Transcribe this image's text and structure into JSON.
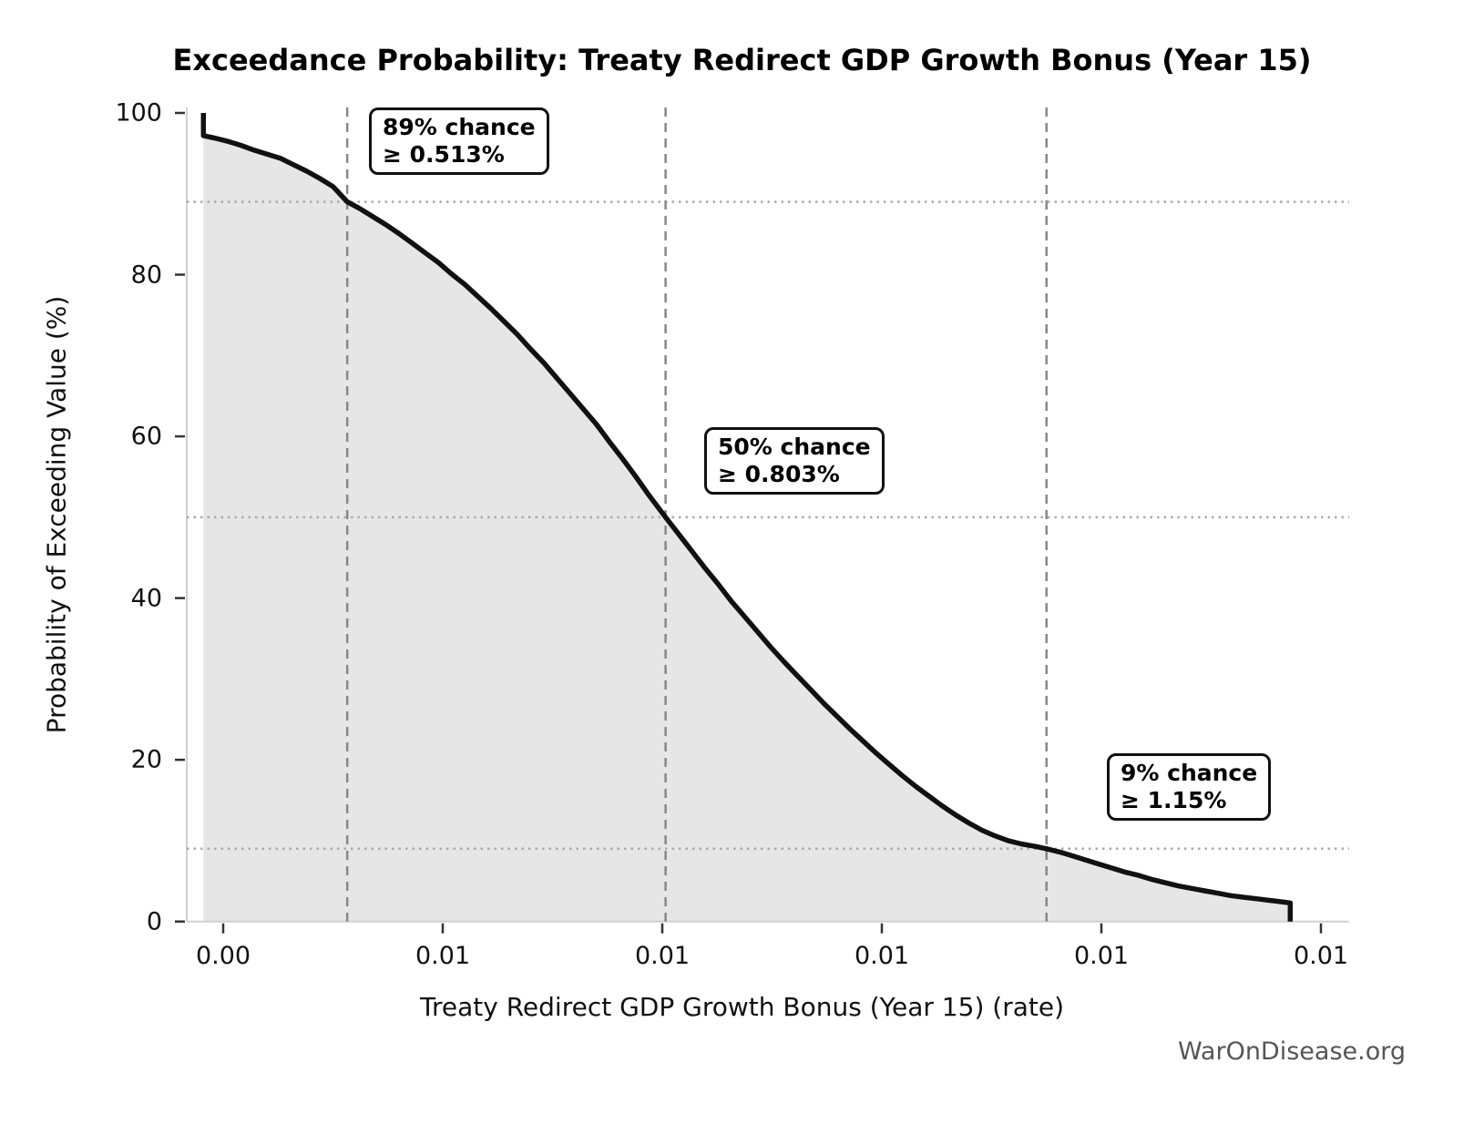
{
  "title": "Exceedance Probability: Treaty Redirect GDP Growth Bonus (Year 15)",
  "watermark": "WarOnDisease.org",
  "chart_data": {
    "type": "line",
    "subtype": "exceedance-probability-curve",
    "title": "Exceedance Probability: Treaty Redirect GDP Growth Bonus (Year 15)",
    "xlabel": "Treaty Redirect GDP Growth Bonus (Year 15) (rate)",
    "ylabel": "Probability of Exceeding Value (%)",
    "xlim_pct": [
      0.367,
      1.427
    ],
    "ylim": [
      0,
      100
    ],
    "grid": "guide lines only (dotted horizontal and dashed vertical at annotated percentiles)",
    "legend": "none",
    "x_ticks": {
      "values_pct": [
        0.4,
        0.6,
        0.8,
        1.0,
        1.2,
        1.4
      ],
      "labels": [
        "0.00",
        "0.01",
        "0.01",
        "0.01",
        "0.01",
        "0.01"
      ]
    },
    "y_ticks": {
      "values": [
        100,
        80,
        60,
        40,
        20,
        0
      ],
      "labels": [
        "100",
        "80",
        "60",
        "40",
        "20",
        "0"
      ]
    },
    "curve_units": {
      "x": "rate in percent",
      "y": "probability of exceeding value in percent"
    },
    "curve": [
      [
        0.382,
        100.0
      ],
      [
        0.382,
        97.2
      ],
      [
        0.392,
        96.9
      ],
      [
        0.404,
        96.5
      ],
      [
        0.416,
        96.0
      ],
      [
        0.428,
        95.4
      ],
      [
        0.44,
        94.9
      ],
      [
        0.452,
        94.4
      ],
      [
        0.464,
        93.6
      ],
      [
        0.476,
        92.8
      ],
      [
        0.488,
        91.9
      ],
      [
        0.5,
        90.9
      ],
      [
        0.513,
        89.0
      ],
      [
        0.524,
        88.2
      ],
      [
        0.536,
        87.2
      ],
      [
        0.548,
        86.2
      ],
      [
        0.56,
        85.1
      ],
      [
        0.572,
        83.9
      ],
      [
        0.584,
        82.7
      ],
      [
        0.596,
        81.5
      ],
      [
        0.608,
        80.1
      ],
      [
        0.62,
        78.8
      ],
      [
        0.632,
        77.3
      ],
      [
        0.644,
        75.8
      ],
      [
        0.656,
        74.2
      ],
      [
        0.668,
        72.6
      ],
      [
        0.68,
        70.8
      ],
      [
        0.692,
        69.1
      ],
      [
        0.704,
        67.2
      ],
      [
        0.716,
        65.3
      ],
      [
        0.728,
        63.4
      ],
      [
        0.74,
        61.5
      ],
      [
        0.752,
        59.3
      ],
      [
        0.764,
        57.2
      ],
      [
        0.776,
        55.0
      ],
      [
        0.788,
        52.7
      ],
      [
        0.803,
        50.0
      ],
      [
        0.815,
        47.9
      ],
      [
        0.827,
        45.8
      ],
      [
        0.839,
        43.7
      ],
      [
        0.851,
        41.7
      ],
      [
        0.863,
        39.6
      ],
      [
        0.875,
        37.7
      ],
      [
        0.887,
        35.8
      ],
      [
        0.899,
        33.9
      ],
      [
        0.911,
        32.1
      ],
      [
        0.923,
        30.4
      ],
      [
        0.935,
        28.7
      ],
      [
        0.947,
        27.0
      ],
      [
        0.959,
        25.4
      ],
      [
        0.971,
        23.8
      ],
      [
        0.983,
        22.3
      ],
      [
        0.995,
        20.8
      ],
      [
        1.007,
        19.4
      ],
      [
        1.019,
        18.0
      ],
      [
        1.031,
        16.7
      ],
      [
        1.043,
        15.5
      ],
      [
        1.055,
        14.3
      ],
      [
        1.067,
        13.2
      ],
      [
        1.079,
        12.2
      ],
      [
        1.091,
        11.3
      ],
      [
        1.103,
        10.6
      ],
      [
        1.115,
        10.0
      ],
      [
        1.127,
        9.6
      ],
      [
        1.139,
        9.3
      ],
      [
        1.15,
        9.0
      ],
      [
        1.162,
        8.6
      ],
      [
        1.174,
        8.1
      ],
      [
        1.186,
        7.6
      ],
      [
        1.198,
        7.1
      ],
      [
        1.21,
        6.6
      ],
      [
        1.222,
        6.1
      ],
      [
        1.234,
        5.7
      ],
      [
        1.246,
        5.2
      ],
      [
        1.258,
        4.8
      ],
      [
        1.27,
        4.4
      ],
      [
        1.282,
        4.1
      ],
      [
        1.294,
        3.8
      ],
      [
        1.306,
        3.5
      ],
      [
        1.318,
        3.2
      ],
      [
        1.33,
        3.0
      ],
      [
        1.342,
        2.8
      ],
      [
        1.354,
        2.6
      ],
      [
        1.366,
        2.4
      ],
      [
        1.372,
        2.3
      ],
      [
        1.372,
        0.0
      ]
    ],
    "annotations": [
      {
        "text_line1": "89% chance",
        "text_line2": "≥ 0.513%",
        "probability_pct": 89,
        "value_pct": 0.513
      },
      {
        "text_line1": "50% chance",
        "text_line2": "≥ 0.803%",
        "probability_pct": 50,
        "value_pct": 0.803
      },
      {
        "text_line1": "9% chance",
        "text_line2": "≥ 1.15%",
        "probability_pct": 9,
        "value_pct": 1.15
      }
    ],
    "colors": {
      "curve": "#111111",
      "fill_under_curve": "#e6e6e6",
      "dashed_guide": "#888888",
      "dotted_guide": "#aaaaaa",
      "spine": "#d0d0d0",
      "tick": "#333333",
      "watermark": "#555555"
    }
  }
}
